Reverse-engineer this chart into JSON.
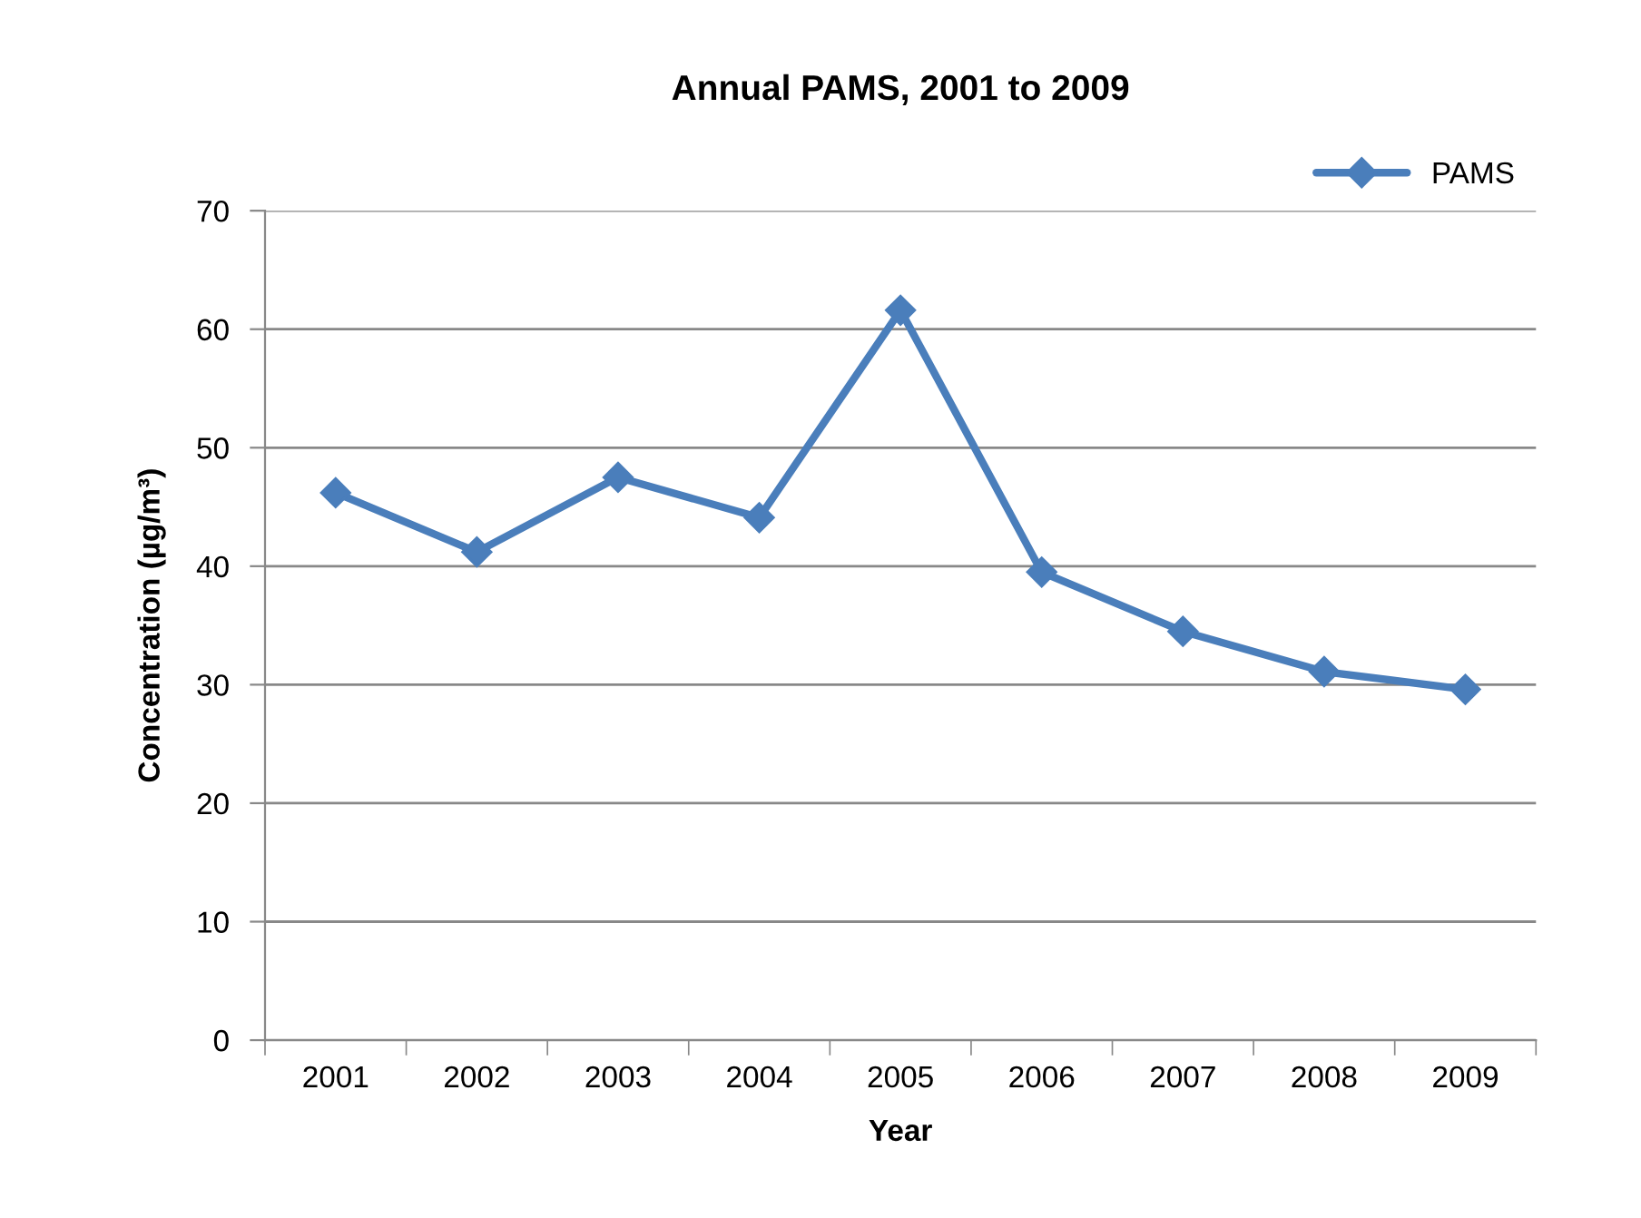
{
  "chart_data": {
    "type": "line",
    "title": "Annual PAMS, 2001 to 2009",
    "xlabel": "Year",
    "ylabel": "Concentration (µg/m³)",
    "categories": [
      "2001",
      "2002",
      "2003",
      "2004",
      "2005",
      "2006",
      "2007",
      "2008",
      "2009"
    ],
    "series": [
      {
        "name": "PAMS",
        "color": "#4a7ebb",
        "values": [
          46.2,
          41.2,
          47.5,
          44.1,
          61.6,
          39.5,
          34.5,
          31.1,
          29.6
        ]
      }
    ],
    "ylim": [
      0,
      70
    ],
    "yticks": [
      0,
      10,
      20,
      30,
      40,
      50,
      60,
      70
    ],
    "grid": "y",
    "legend": "top right",
    "marker": "diamond",
    "line_style": "solid"
  }
}
